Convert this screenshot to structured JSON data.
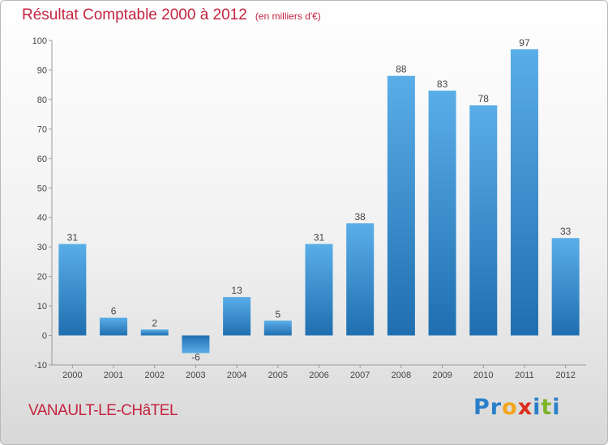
{
  "colors": {
    "title": "#c4243f",
    "bar_light": "#5aaee8",
    "bar_dark": "#1f6fb0"
  },
  "chart_data": {
    "type": "bar",
    "title": "Résultat Comptable 2000 à 2012",
    "unit_note": "(en milliers d'€)",
    "xlabel": "",
    "ylabel": "",
    "categories": [
      "2000",
      "2001",
      "2002",
      "2003",
      "2004",
      "2005",
      "2006",
      "2007",
      "2008",
      "2009",
      "2010",
      "2011",
      "2012"
    ],
    "values": [
      31,
      6,
      2,
      -6,
      13,
      5,
      31,
      38,
      88,
      83,
      78,
      97,
      33
    ],
    "data_labels": [
      "31",
      "6",
      "2",
      "-6",
      "13",
      "5",
      "31",
      "38",
      "88",
      "83",
      "78",
      "97",
      "33"
    ],
    "ylim": [
      -10,
      100
    ],
    "yticks": [
      -10,
      0,
      10,
      20,
      30,
      40,
      50,
      60,
      70,
      80,
      90,
      100
    ],
    "grid": false,
    "legend": "none"
  },
  "footer": {
    "place": "VANAULT-LE-CHâTEL"
  },
  "logo": {
    "letters": [
      {
        "ch": "P",
        "color": "#2a7fc9"
      },
      {
        "ch": "r",
        "color": "#2a7fc9"
      },
      {
        "ch": "o",
        "color": "#f2a51c"
      },
      {
        "ch": "x",
        "color": "#dc2e1d"
      },
      {
        "ch": "i",
        "color": "#2a7fc9"
      },
      {
        "ch": "t",
        "color": "#7db52b"
      },
      {
        "ch": "i",
        "color": "#2a7fc9"
      }
    ]
  }
}
